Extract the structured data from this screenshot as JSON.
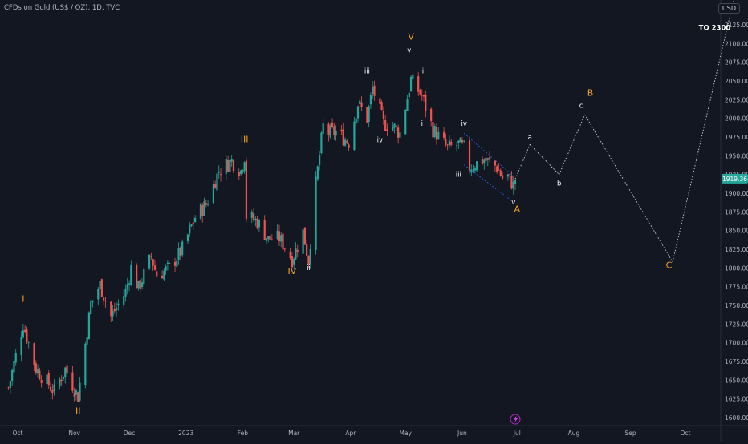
{
  "chart_data": {
    "type": "candlestick",
    "title": "CFDs on Gold (US$ / OZ), 1D, TVC",
    "currency": "USD",
    "current_price": "1919.36",
    "accent_colors": {
      "up": "#26a69a",
      "down": "#ef5350",
      "wave": "#f7a21b",
      "label": "#ffffff",
      "price_badge": "#26a69a"
    },
    "ylim": [
      1590,
      2165
    ],
    "y_ticks": [
      1600,
      1625,
      1650,
      1675,
      1700,
      1725,
      1750,
      1775,
      1800,
      1825,
      1850,
      1875,
      1900,
      1925,
      1950,
      1975,
      2000,
      2025,
      2050,
      2075,
      2100,
      2125
    ],
    "x_ticks": [
      {
        "date": "2022-10-01",
        "label": "Oct"
      },
      {
        "date": "2022-11-01",
        "label": "Nov"
      },
      {
        "date": "2022-12-01",
        "label": "Dec"
      },
      {
        "date": "2023-01-01",
        "label": "2023"
      },
      {
        "date": "2023-02-01",
        "label": "Feb"
      },
      {
        "date": "2023-03-01",
        "label": "Mar"
      },
      {
        "date": "2023-04-01",
        "label": "Apr"
      },
      {
        "date": "2023-05-01",
        "label": "May"
      },
      {
        "date": "2023-06-01",
        "label": "Jun"
      },
      {
        "date": "2023-07-01",
        "label": "Jul"
      },
      {
        "date": "2023-08-01",
        "label": "Aug"
      },
      {
        "date": "2023-09-01",
        "label": "Sep"
      },
      {
        "date": "2023-10-01",
        "label": "Oct"
      }
    ],
    "price_path": [
      [
        "2022-09-26",
        1640
      ],
      [
        "2022-10-04",
        1725
      ],
      [
        "2022-10-11",
        1665
      ],
      [
        "2022-10-21",
        1635
      ],
      [
        "2022-10-27",
        1665
      ],
      [
        "2022-11-03",
        1628
      ],
      [
        "2022-11-10",
        1752
      ],
      [
        "2022-11-15",
        1778
      ],
      [
        "2022-11-21",
        1735
      ],
      [
        "2022-11-29",
        1768
      ],
      [
        "2022-12-02",
        1800
      ],
      [
        "2022-12-06",
        1773
      ],
      [
        "2022-12-13",
        1815
      ],
      [
        "2022-12-16",
        1790
      ],
      [
        "2022-12-23",
        1800
      ],
      [
        "2022-12-30",
        1825
      ],
      [
        "2023-01-06",
        1868
      ],
      [
        "2023-01-12",
        1885
      ],
      [
        "2023-01-19",
        1930
      ],
      [
        "2023-01-26",
        1943
      ],
      [
        "2023-01-31",
        1930
      ],
      [
        "2023-02-02",
        1950
      ],
      [
        "2023-02-03",
        1870
      ],
      [
        "2023-02-09",
        1862
      ],
      [
        "2023-02-15",
        1838
      ],
      [
        "2023-02-21",
        1840
      ],
      [
        "2023-02-28",
        1812
      ],
      [
        "2023-03-06",
        1848
      ],
      [
        "2023-03-09",
        1810
      ],
      [
        "2023-03-13",
        1912
      ],
      [
        "2023-03-17",
        1990
      ],
      [
        "2023-03-20",
        1980
      ],
      [
        "2023-03-24",
        1982
      ],
      [
        "2023-03-31",
        1968
      ],
      [
        "2023-04-05",
        2020
      ],
      [
        "2023-04-10",
        2000
      ],
      [
        "2023-04-13",
        2040
      ],
      [
        "2023-04-19",
        1993
      ],
      [
        "2023-04-24",
        1990
      ],
      [
        "2023-04-28",
        1980
      ],
      [
        "2023-05-04",
        2052
      ],
      [
        "2023-05-10",
        2030
      ],
      [
        "2023-05-16",
        1985
      ],
      [
        "2023-05-24",
        1960
      ],
      [
        "2023-05-30",
        1965
      ],
      [
        "2023-06-02",
        1960
      ],
      [
        "2023-06-05",
        1935
      ],
      [
        "2023-06-13",
        1945
      ],
      [
        "2023-06-20",
        1935
      ],
      [
        "2023-06-23",
        1920
      ],
      [
        "2023-06-26",
        1922
      ],
      [
        "2023-06-29",
        1910
      ],
      [
        "2023-06-30",
        1919
      ]
    ],
    "projection": [
      {
        "date": "2023-06-30",
        "price": 1919
      },
      {
        "date": "2023-07-08",
        "price": 1965
      },
      {
        "date": "2023-07-24",
        "price": 1925
      },
      {
        "date": "2023-08-07",
        "price": 2005
      },
      {
        "date": "2023-09-24",
        "price": 1808
      },
      {
        "date": "2023-10-28",
        "price": 2165
      }
    ],
    "wedge_lines": [
      {
        "from": {
          "date": "2023-06-02",
          "price": 1980
        },
        "to": {
          "date": "2023-06-28",
          "price": 1925
        }
      },
      {
        "from": {
          "date": "2023-06-02",
          "price": 1938
        },
        "to": {
          "date": "2023-06-28",
          "price": 1890
        }
      }
    ],
    "annotations": [
      {
        "text": "I",
        "date": "2022-10-04",
        "price": 1755,
        "color": "wave"
      },
      {
        "text": "II",
        "date": "2022-11-03",
        "price": 1605,
        "color": "wave"
      },
      {
        "text": "III",
        "date": "2023-02-02",
        "price": 1968,
        "color": "wave"
      },
      {
        "text": "IV",
        "date": "2023-02-28",
        "price": 1792,
        "color": "wave"
      },
      {
        "text": "V",
        "date": "2023-05-04",
        "price": 2105,
        "color": "wave"
      },
      {
        "text": "A",
        "date": "2023-07-01",
        "price": 1875,
        "color": "wave"
      },
      {
        "text": "B",
        "date": "2023-08-10",
        "price": 2030,
        "color": "wave"
      },
      {
        "text": "C",
        "date": "2023-09-22",
        "price": 1800,
        "color": "wave"
      },
      {
        "text": "i",
        "date": "2023-03-06",
        "price": 1866,
        "color": "label"
      },
      {
        "text": "ii",
        "date": "2023-03-09",
        "price": 1797,
        "color": "label"
      },
      {
        "text": "iii",
        "date": "2023-04-10",
        "price": 2060,
        "color": "label"
      },
      {
        "text": "iv",
        "date": "2023-04-17",
        "price": 1968,
        "color": "label"
      },
      {
        "text": "v",
        "date": "2023-05-03",
        "price": 2088,
        "color": "label"
      },
      {
        "text": "ii",
        "date": "2023-05-10",
        "price": 2060,
        "color": "label"
      },
      {
        "text": "i",
        "date": "2023-05-10",
        "price": 1990,
        "color": "label"
      },
      {
        "text": "iv",
        "date": "2023-06-02",
        "price": 1990,
        "color": "label"
      },
      {
        "text": "iii",
        "date": "2023-05-30",
        "price": 1922,
        "color": "label"
      },
      {
        "text": "v",
        "date": "2023-06-29",
        "price": 1885,
        "color": "label"
      },
      {
        "text": "a",
        "date": "2023-07-08",
        "price": 1972,
        "color": "label"
      },
      {
        "text": "b",
        "date": "2023-07-24",
        "price": 1910,
        "color": "label"
      },
      {
        "text": "c",
        "date": "2023-08-05",
        "price": 2014,
        "color": "label"
      },
      {
        "text": "TO 2300",
        "date": "2023-10-17",
        "price": 2118,
        "color": "label"
      }
    ]
  }
}
